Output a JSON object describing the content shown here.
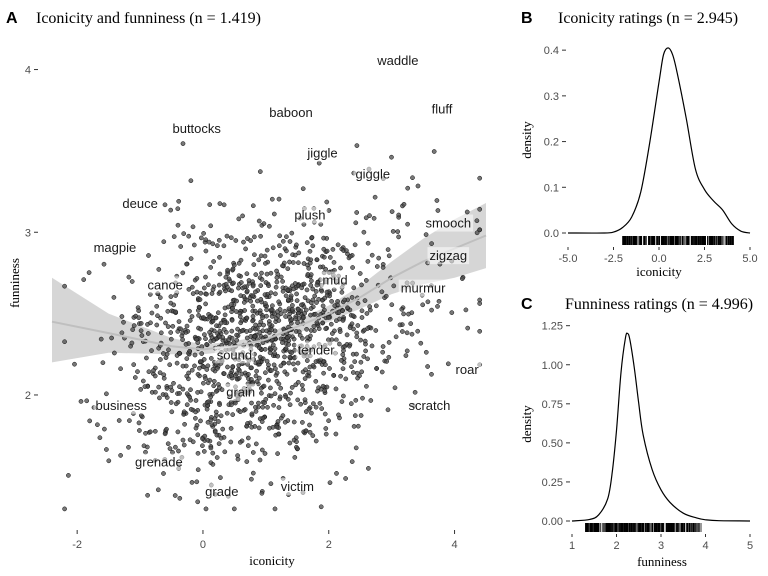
{
  "chart_data": [
    {
      "panel": "A",
      "type": "scatter",
      "title": "Iconicity and funniness (n = 1.419)",
      "xlabel": "iconicity",
      "ylabel": "funniness",
      "xlim": [
        -2.4,
        4.5
      ],
      "ylim": [
        1.25,
        4.2
      ],
      "xticks": [
        -2,
        0,
        2,
        4
      ],
      "yticks": [
        2,
        3,
        4
      ],
      "grid": false,
      "point_color": "#4a4a4a",
      "point_count": 1419,
      "trend": {
        "type": "loess",
        "line_color": "#bfbfbf",
        "band_color": "#cccccc",
        "x": [
          -2.4,
          -1.5,
          -0.5,
          0.0,
          0.5,
          1.0,
          1.5,
          2.0,
          2.5,
          3.0,
          3.5,
          4.0,
          4.5
        ],
        "y": [
          2.45,
          2.38,
          2.3,
          2.28,
          2.3,
          2.34,
          2.42,
          2.5,
          2.6,
          2.72,
          2.82,
          2.9,
          2.98
        ],
        "lower": [
          2.2,
          2.26,
          2.25,
          2.25,
          2.27,
          2.31,
          2.38,
          2.45,
          2.53,
          2.62,
          2.68,
          2.72,
          2.78
        ],
        "upper": [
          2.72,
          2.5,
          2.35,
          2.31,
          2.33,
          2.37,
          2.46,
          2.55,
          2.67,
          2.82,
          2.96,
          3.08,
          3.18
        ]
      },
      "labeled_words": [
        {
          "word": "waddle",
          "x": 3.1,
          "y": 4.05
        },
        {
          "word": "fluff",
          "x": 3.8,
          "y": 3.75
        },
        {
          "word": "baboon",
          "x": 1.4,
          "y": 3.73
        },
        {
          "word": "buttocks",
          "x": -0.1,
          "y": 3.63
        },
        {
          "word": "jiggle",
          "x": 1.9,
          "y": 3.48
        },
        {
          "word": "giggle",
          "x": 2.7,
          "y": 3.35
        },
        {
          "word": "deuce",
          "x": -1.0,
          "y": 3.17
        },
        {
          "word": "plush",
          "x": 1.7,
          "y": 3.1
        },
        {
          "word": "smooch",
          "x": 3.9,
          "y": 3.05
        },
        {
          "word": "zigzag",
          "x": 3.9,
          "y": 2.85
        },
        {
          "word": "magpie",
          "x": -1.4,
          "y": 2.9
        },
        {
          "word": "canoe",
          "x": -0.6,
          "y": 2.67
        },
        {
          "word": "mud",
          "x": 2.1,
          "y": 2.7
        },
        {
          "word": "murmur",
          "x": 3.5,
          "y": 2.65
        },
        {
          "word": "sound",
          "x": 0.5,
          "y": 2.24
        },
        {
          "word": "tender",
          "x": 1.8,
          "y": 2.27
        },
        {
          "word": "roar",
          "x": 4.2,
          "y": 2.15
        },
        {
          "word": "grain",
          "x": 0.6,
          "y": 2.01
        },
        {
          "word": "business",
          "x": -1.3,
          "y": 1.93
        },
        {
          "word": "scratch",
          "x": 3.6,
          "y": 1.93
        },
        {
          "word": "grenade",
          "x": -0.7,
          "y": 1.58
        },
        {
          "word": "victim",
          "x": 1.5,
          "y": 1.43
        },
        {
          "word": "grade",
          "x": 0.3,
          "y": 1.4
        }
      ]
    },
    {
      "panel": "B",
      "type": "line",
      "title": "Iconicity ratings (n = 2.945)",
      "xlabel": "iconicity",
      "ylabel": "density",
      "xlim": [
        -5.0,
        5.0
      ],
      "ylim": [
        0,
        0.42
      ],
      "xticks": [
        -5.0,
        -2.5,
        0.0,
        2.5,
        5.0
      ],
      "xtick_labels": [
        "-5.0",
        "-2.5",
        "0.0",
        "2.5",
        "5.0"
      ],
      "yticks": [
        0.0,
        0.1,
        0.2,
        0.3,
        0.4
      ],
      "ytick_labels": [
        "0.0",
        "0.1",
        "0.2",
        "0.3",
        "0.4"
      ],
      "x": [
        -5.0,
        -3.0,
        -2.5,
        -2.0,
        -1.5,
        -1.0,
        -0.5,
        0.0,
        0.25,
        0.5,
        0.75,
        1.0,
        1.5,
        2.0,
        2.5,
        3.0,
        3.5,
        4.0,
        4.5,
        5.0
      ],
      "y": [
        0.0,
        0.0,
        0.002,
        0.012,
        0.035,
        0.09,
        0.2,
        0.33,
        0.39,
        0.405,
        0.39,
        0.35,
        0.25,
        0.14,
        0.095,
        0.07,
        0.05,
        0.02,
        0.004,
        0.0
      ],
      "rug": {
        "from": -2.0,
        "to": 4.1
      }
    },
    {
      "panel": "C",
      "type": "line",
      "title": "Funniness ratings (n = 4.996)",
      "xlabel": "funniness",
      "ylabel": "density",
      "xlim": [
        1,
        5
      ],
      "ylim": [
        0,
        1.28
      ],
      "xticks": [
        1,
        2,
        3,
        4,
        5
      ],
      "xtick_labels": [
        "1",
        "2",
        "3",
        "4",
        "5"
      ],
      "yticks": [
        0.0,
        0.25,
        0.5,
        0.75,
        1.0,
        1.25
      ],
      "ytick_labels": [
        "0.00",
        "0.25",
        "0.50",
        "0.75",
        "1.00",
        "1.25"
      ],
      "x": [
        1.0,
        1.4,
        1.6,
        1.8,
        1.9,
        2.0,
        2.1,
        2.2,
        2.25,
        2.3,
        2.4,
        2.5,
        2.6,
        2.8,
        3.0,
        3.2,
        3.5,
        3.8,
        4.0,
        4.3,
        5.0
      ],
      "y": [
        0.0,
        0.01,
        0.04,
        0.14,
        0.3,
        0.58,
        0.95,
        1.17,
        1.2,
        1.16,
        0.98,
        0.75,
        0.55,
        0.33,
        0.2,
        0.12,
        0.05,
        0.02,
        0.008,
        0.002,
        0.0
      ],
      "rug": {
        "from": 1.3,
        "to": 3.9
      }
    }
  ]
}
